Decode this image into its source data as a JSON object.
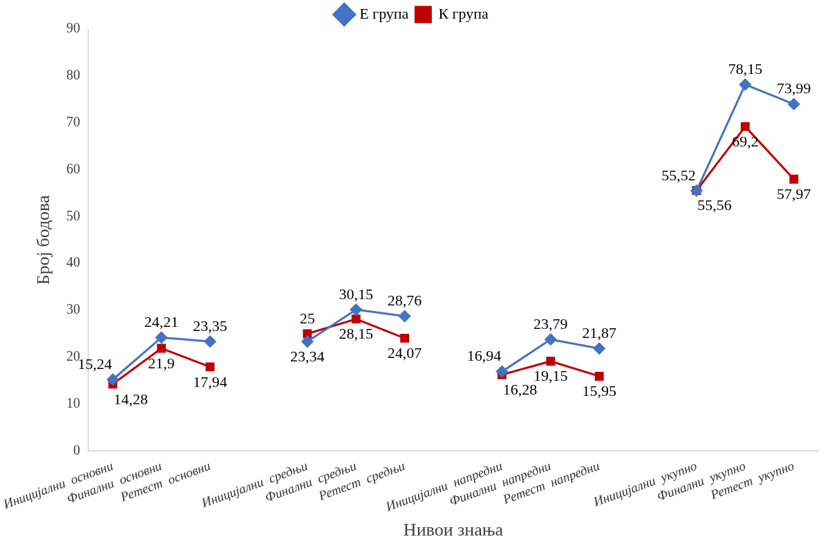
{
  "chart_data": {
    "type": "line",
    "xlabel": "Нивои знања",
    "ylabel": "Број бодова",
    "categories": [
      "Иницијални  основни",
      "Финални  основни",
      "Ретест  основни",
      null,
      "Иницијални  средњи",
      "Финални  средњи",
      "Ретест  средњи",
      null,
      "Иницијални  напредни",
      "Финални  напредни",
      "Ретест  напредни",
      null,
      "Иницијални  укупно",
      "Финални  укупно",
      "Ретест  укупно"
    ],
    "series": [
      {
        "name": "Е група",
        "color": "#4472c4",
        "marker": "diamond",
        "values": [
          15.24,
          24.21,
          23.35,
          null,
          23.34,
          30.15,
          28.76,
          null,
          16.94,
          23.79,
          21.87,
          null,
          55.52,
          78.15,
          73.99
        ],
        "value_labels": [
          "15,24",
          "24,21",
          "23,35",
          null,
          "23,34",
          "30,15",
          "28,76",
          null,
          "16,94",
          "23,79",
          "21,87",
          null,
          "55,52",
          "78,15",
          "73,99"
        ]
      },
      {
        "name": "К група",
        "color": "#c00000",
        "marker": "square",
        "values": [
          14.28,
          21.9,
          17.94,
          null,
          25,
          28.15,
          24.07,
          null,
          16.28,
          19.15,
          15.95,
          null,
          55.56,
          69.2,
          57.97
        ],
        "value_labels": [
          "14,28",
          "21,9",
          "17,94",
          null,
          "25",
          "28,15",
          "24,07",
          null,
          "16,28",
          "19,15",
          "15,95",
          null,
          "55,56",
          "69,2",
          "57,97"
        ]
      }
    ],
    "ylim": [
      0,
      90
    ],
    "yticks": [
      0,
      10,
      20,
      30,
      40,
      50,
      60,
      70,
      80,
      90
    ],
    "grid": false,
    "legend": "top"
  }
}
